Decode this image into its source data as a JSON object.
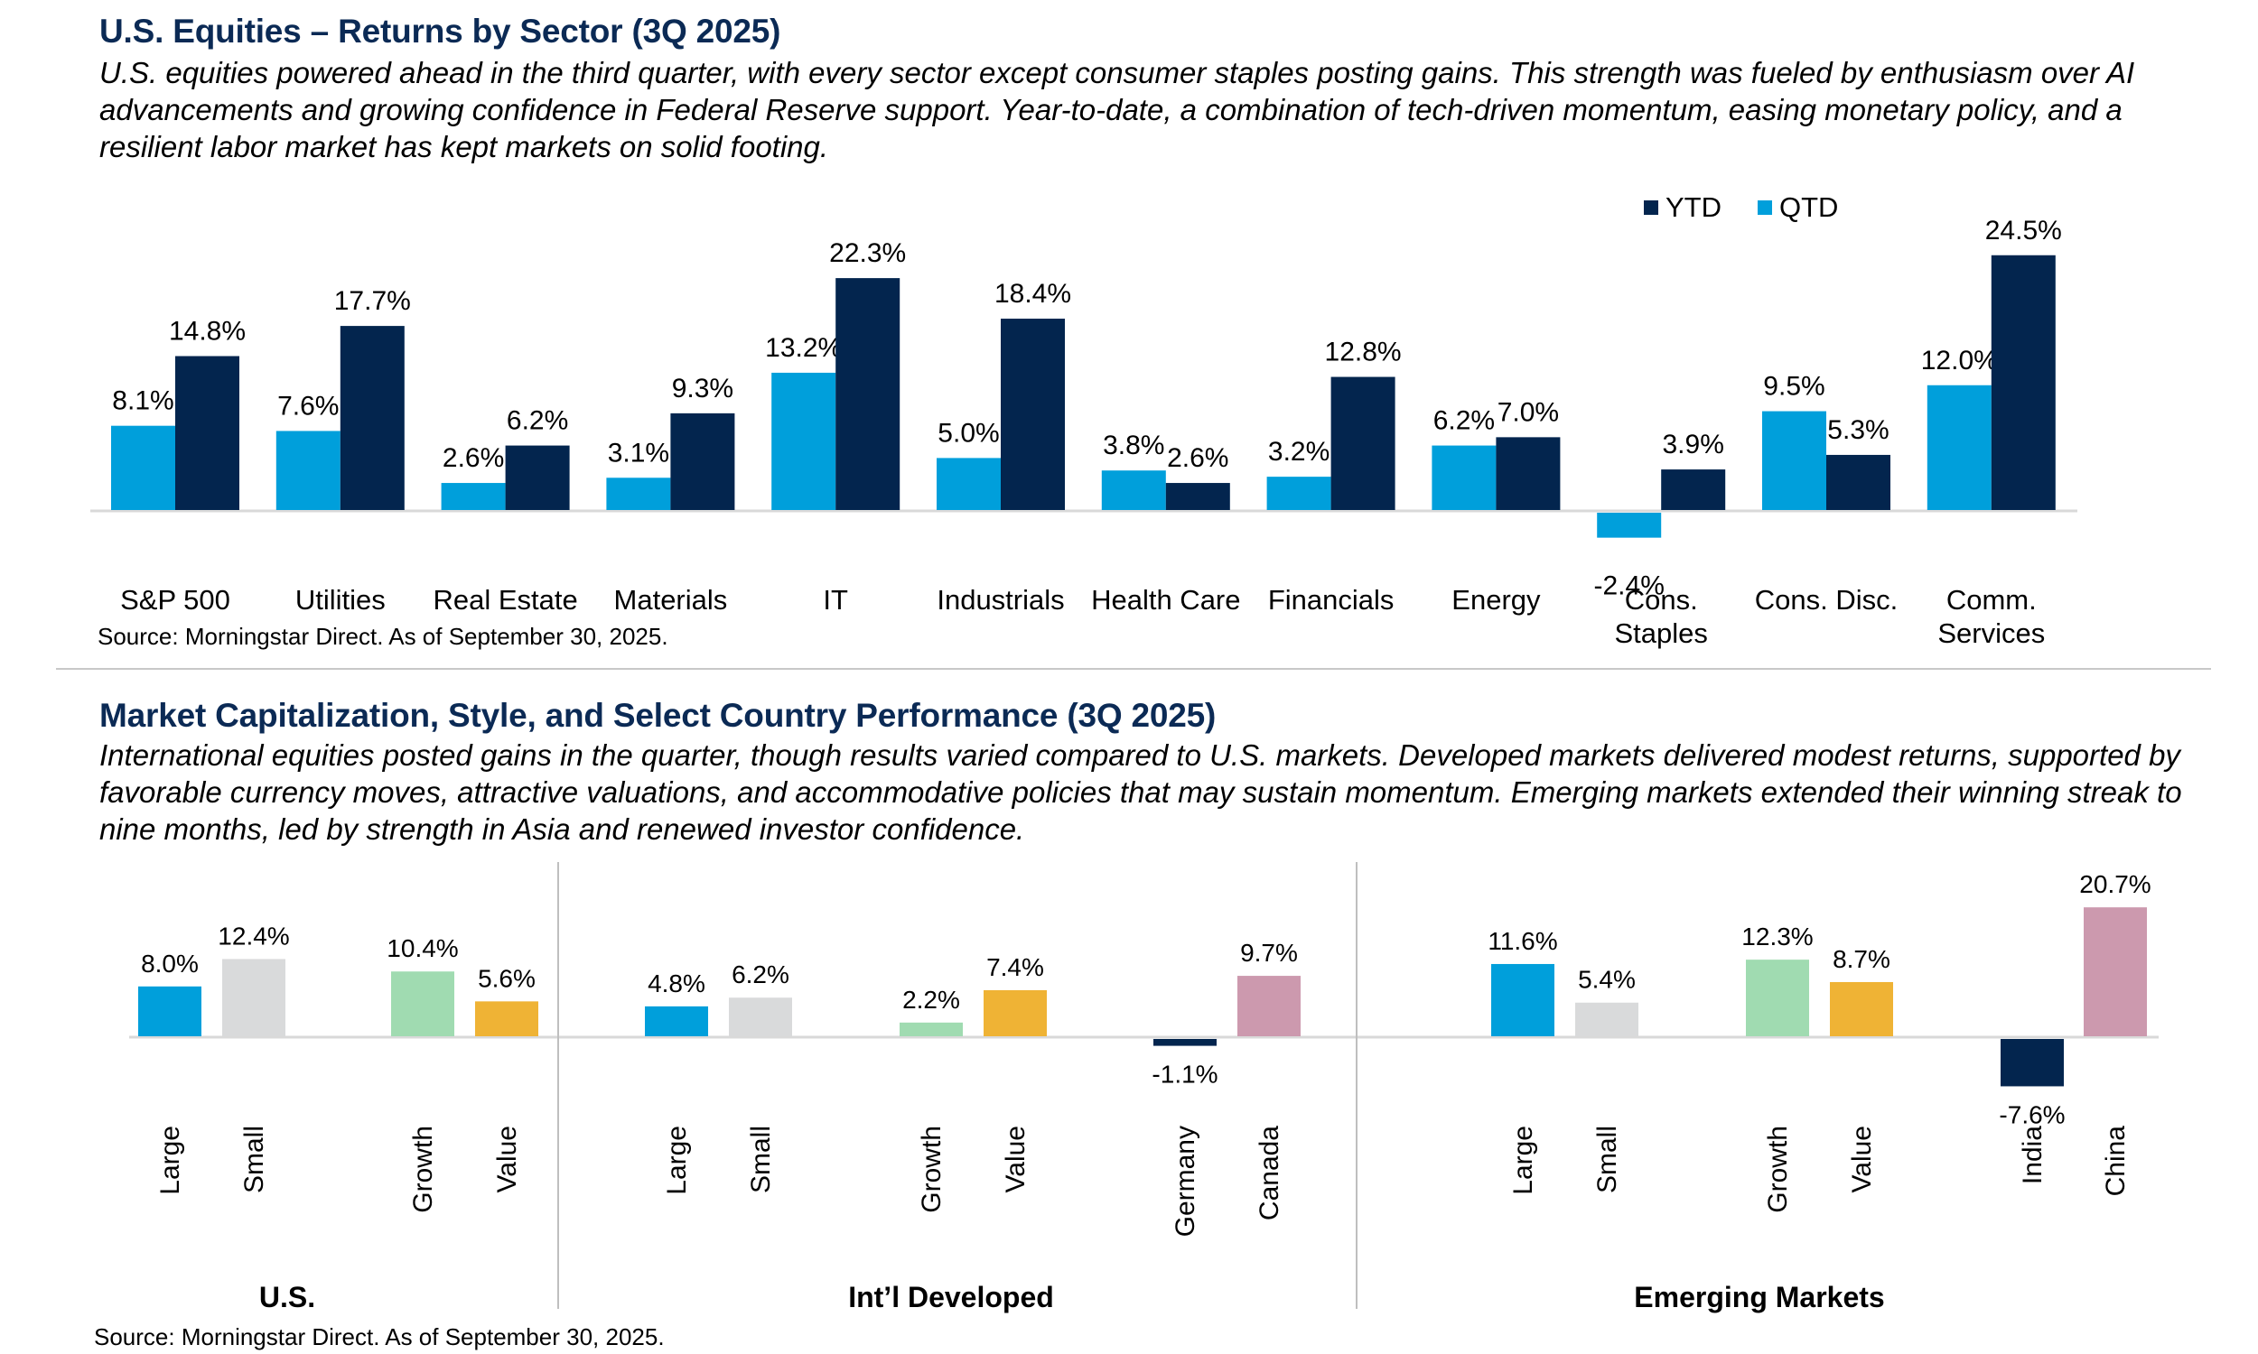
{
  "section1": {
    "title": "U.S. Equities – Returns by Sector (3Q 2025)",
    "paragraph": "U.S. equities powered ahead in the third quarter, with every sector except consumer staples posting gains. This strength was fueled by enthusiasm over AI advancements and growing confidence in Federal Reserve support. Year-to-date, a combination of tech-driven momentum, easing monetary policy, and a resilient labor market has kept markets on solid footing.",
    "source": "Source: Morningstar  Direct. As of September 30, 2025."
  },
  "section2": {
    "title": "Market Capitalization, Style, and Select Country Performance (3Q 2025)",
    "paragraph": "International equities posted gains in the quarter, though results varied compared to U.S. markets. Developed markets delivered modest returns, supported by favorable currency moves, attractive valuations, and accommodative policies that may sustain momentum. Emerging markets extended their winning streak to nine months, led by strength in Asia and renewed investor confidence.",
    "source": "Source: Morningstar  Direct. As of September 30, 2025."
  },
  "colors": {
    "navy": "#03254e",
    "light_blue": "#009fdb",
    "gray": "#d9dadb",
    "green": "#a0dbb1",
    "gold": "#efb335",
    "pink": "#cc99ae",
    "axis": "#d9d9d9",
    "title": "#0b2a55"
  },
  "chart_data": [
    {
      "type": "bar",
      "title": "U.S. Equities – Returns by Sector (3Q 2025)",
      "xlabel": "",
      "ylabel": "",
      "unit": "%",
      "grid": false,
      "legend": {
        "position": "top-right",
        "entries": [
          "YTD",
          "QTD"
        ]
      },
      "categories": [
        [
          "S&P 500"
        ],
        [
          "Utilities"
        ],
        [
          "Real Estate"
        ],
        [
          "Materials"
        ],
        [
          "IT"
        ],
        [
          "Industrials"
        ],
        [
          "Health Care"
        ],
        [
          "Financials"
        ],
        [
          "Energy"
        ],
        [
          "Cons.",
          "Staples"
        ],
        [
          "Cons. Disc."
        ],
        [
          "Comm.",
          "Services"
        ]
      ],
      "series": [
        {
          "name": "QTD",
          "color": "#009fdb",
          "values": [
            8.1,
            7.6,
            2.6,
            3.1,
            13.2,
            5.0,
            3.8,
            3.2,
            6.2,
            -2.4,
            9.5,
            12.0
          ]
        },
        {
          "name": "YTD",
          "color": "#03254e",
          "values": [
            14.8,
            17.7,
            6.2,
            9.3,
            22.3,
            18.4,
            2.6,
            12.8,
            7.0,
            3.9,
            5.3,
            24.5
          ]
        }
      ],
      "ylim": [
        -5,
        25
      ]
    },
    {
      "type": "bar",
      "title": "Market Capitalization, Style, and Select Country Performance (3Q 2025)",
      "xlabel": "",
      "ylabel": "",
      "unit": "%",
      "grid": false,
      "ylim": [
        -10,
        22
      ],
      "groups": [
        {
          "name": "U.S.",
          "bars": [
            {
              "label": "Large",
              "value": 8.0,
              "color": "#009fdb"
            },
            {
              "label": "Small",
              "value": 12.4,
              "color": "#d9dadb"
            },
            {
              "label": "Growth",
              "value": 10.4,
              "color": "#a0dbb1"
            },
            {
              "label": "Value",
              "value": 5.6,
              "color": "#efb335"
            }
          ]
        },
        {
          "name": "Int’l Developed",
          "bars": [
            {
              "label": "Large",
              "value": 4.8,
              "color": "#009fdb"
            },
            {
              "label": "Small",
              "value": 6.2,
              "color": "#d9dadb"
            },
            {
              "label": "Growth",
              "value": 2.2,
              "color": "#a0dbb1"
            },
            {
              "label": "Value",
              "value": 7.4,
              "color": "#efb335"
            },
            {
              "label": "Germany",
              "value": -1.1,
              "color": "#03254e"
            },
            {
              "label": "Canada",
              "value": 9.7,
              "color": "#cc99ae"
            }
          ]
        },
        {
          "name": "Emerging Markets",
          "bars": [
            {
              "label": "Large",
              "value": 11.6,
              "color": "#009fdb"
            },
            {
              "label": "Small",
              "value": 5.4,
              "color": "#d9dadb"
            },
            {
              "label": "Growth",
              "value": 12.3,
              "color": "#a0dbb1"
            },
            {
              "label": "Value",
              "value": 8.7,
              "color": "#efb335"
            },
            {
              "label": "India",
              "value": -7.6,
              "color": "#03254e"
            },
            {
              "label": "China",
              "value": 20.7,
              "color": "#cc99ae"
            }
          ]
        }
      ]
    }
  ]
}
